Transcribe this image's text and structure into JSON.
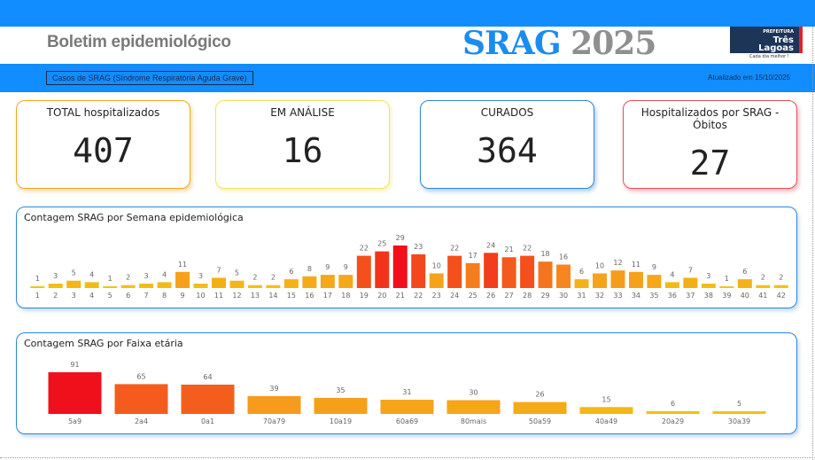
{
  "header": {
    "title": "Boletim epidemiológico",
    "srag": "SRAG",
    "year": "2025",
    "logo_top": "PREFEITURA",
    "logo_name1": "Três",
    "logo_name2": "Lagoas",
    "logo_tagline": "Cada dia melhor !"
  },
  "subheader": {
    "subtitle": "Casos de SRAG (Síndrome Respiratória Aguda Grave)",
    "updated": "Atualizado em 15/10/2025"
  },
  "cards": [
    {
      "label": "TOTAL hospitalizados",
      "value": "407",
      "color": "#f5a623"
    },
    {
      "label": "EM ANÁLISE",
      "value": "16",
      "color": "#f3e25a"
    },
    {
      "label": "CURADOS",
      "value": "364",
      "color": "#2f86d8"
    },
    {
      "label": "Hospitalizados por SRAG - Óbitos",
      "value": "27",
      "color": "#e0505a"
    }
  ],
  "chart_data": [
    {
      "type": "bar",
      "title": "Contagem SRAG por Semana epidemiológica",
      "categories": [
        "1",
        "2",
        "3",
        "4",
        "5",
        "6",
        "7",
        "8",
        "9",
        "10",
        "11",
        "12",
        "13",
        "14",
        "15",
        "16",
        "17",
        "18",
        "19",
        "20",
        "21",
        "22",
        "23",
        "24",
        "25",
        "26",
        "27",
        "28",
        "29",
        "30",
        "31",
        "32",
        "33",
        "34",
        "35",
        "36",
        "37",
        "38",
        "39",
        "40",
        "41",
        "42"
      ],
      "values": [
        1,
        3,
        5,
        4,
        1,
        2,
        3,
        4,
        11,
        3,
        7,
        5,
        2,
        2,
        6,
        8,
        9,
        9,
        22,
        25,
        29,
        23,
        10,
        22,
        17,
        24,
        21,
        22,
        18,
        16,
        6,
        10,
        12,
        11,
        9,
        4,
        7,
        3,
        1,
        6,
        2,
        2
      ]
    },
    {
      "type": "bar",
      "title": "Contagem SRAG por Faixa etária",
      "categories": [
        "5a9",
        "2a4",
        "0a1",
        "70a79",
        "10a19",
        "60a69",
        "80mais",
        "50a59",
        "40a49",
        "20a29",
        "30a39"
      ],
      "values": [
        91,
        65,
        64,
        39,
        35,
        31,
        30,
        26,
        15,
        6,
        5
      ]
    }
  ]
}
